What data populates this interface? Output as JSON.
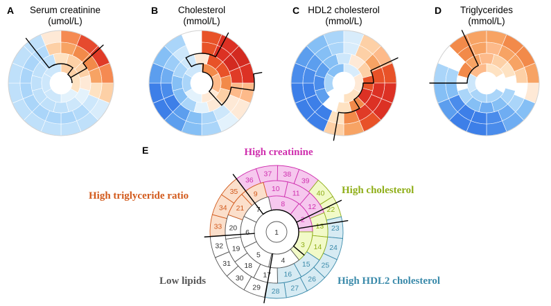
{
  "panels": [
    {
      "letter": "A",
      "title": [
        "Serum creatinine",
        "(umol/L)"
      ],
      "rings": [
        [
          "#fee9d6",
          "#f58a52",
          "#e64a2e",
          "#e03b27",
          "#f58a52",
          "#fdd0a6",
          "#d8ecfb",
          "#bfe0fa",
          "#bfe0fa",
          "#bfe0fa",
          "#bfe0fa",
          "#bfe0fa",
          "#bfe0fa",
          "#bfe0fa",
          "#bfe0fa",
          "#bfe0fa"
        ],
        [
          "#fdd0a6",
          "#f7a364",
          "#f28a4a",
          "#f28a4a",
          "#f7a364",
          "#fee2c2",
          "#cde7fb",
          "#b3dafa",
          "#aad5f9",
          "#aad5f9",
          "#aad5f9",
          "#aad5f9",
          "#aad5f9",
          "#aad5f9",
          "#aad5f9",
          "#b3dafa"
        ],
        [
          "#fee2c2",
          "#fdd0a6",
          "#fdd0a6",
          "#fee9d6",
          "#e3f2fc",
          "#cde7fb",
          "#bfe0fa",
          "#bfe0fa",
          "#bfe0fa",
          "#bfe0fa",
          "#bfe0fa",
          "#bfe0fa"
        ],
        [
          "#fdd0a6",
          "#fee2c2",
          "#e3f2fc",
          "#cde7fb",
          "#cde7fb",
          "#cde7fb"
        ]
      ]
    },
    {
      "letter": "B",
      "title": [
        "Cholesterol",
        "(mmol/L)"
      ],
      "rings": [
        [
          "#ffffff",
          "#e85228",
          "#dc3124",
          "#d32a20",
          "#dc3124",
          "#fdba8a",
          "#fee9d6",
          "#e3f2fc",
          "#aad5f9",
          "#85bff5",
          "#5c9eee",
          "#3d7fe8",
          "#3d7fe8",
          "#5c9eee",
          "#85bff5",
          "#aad5f9"
        ],
        [
          "#ffffff",
          "#e85228",
          "#dc3124",
          "#d32a20",
          "#e03b27",
          "#fdba8a",
          "#fee9d6",
          "#cde7fb",
          "#aad5f9",
          "#85bff5",
          "#5c9eee",
          "#3d7fe8",
          "#4a8ceb",
          "#6fadf2",
          "#9ccdf8",
          "#cde7fb"
        ],
        [
          "#fee9d6",
          "#e85228",
          "#e85228",
          "#f28a4a",
          "#fdd0a6",
          "#fee9d6",
          "#e3f2fc",
          "#aad5f9",
          "#85bff5",
          "#85bff5",
          "#aad5f9",
          "#cde7fb"
        ],
        [
          "#f28a4a",
          "#fdba8a",
          "#fee9d6",
          "#e3f2fc",
          "#aad5f9",
          "#cde7fb"
        ]
      ]
    },
    {
      "letter": "C",
      "title": [
        "HDL2 cholesterol",
        "(mmol/L)"
      ],
      "rings": [
        [
          "#aad5f9",
          "#d8ecfb",
          "#fdd0a6",
          "#fdba8a",
          "#e85228",
          "#dc3124",
          "#dc3124",
          "#e85228",
          "#f7a364",
          "#fdd0a6",
          "#3d7fe8",
          "#3d7fe8",
          "#3d7fe8",
          "#4a8ceb",
          "#5c9eee",
          "#85bff5"
        ],
        [
          "#aad5f9",
          "#d8ecfb",
          "#fdd0a6",
          "#f7a364",
          "#e85228",
          "#dc3124",
          "#dc3124",
          "#e03b27",
          "#f28a4a",
          "#fee2c2",
          "#3d7fe8",
          "#3d7fe8",
          "#3d7fe8",
          "#4a8ceb",
          "#5c9eee",
          "#85bff5"
        ],
        [
          "#cde7fb",
          "#fee9d6",
          "#fdd0a6",
          "#e85228",
          "#dc3124",
          "#f28a4a",
          "#fee2c2",
          "#ffffff",
          "#5c9eee",
          "#4a8ceb",
          "#5c9eee",
          "#85bff5"
        ],
        [
          "#d8ecfb",
          "#fee9d6",
          "#fee2c2",
          "#ffffff",
          "#aad5f9",
          "#85bff5"
        ]
      ]
    },
    {
      "letter": "D",
      "title": [
        "Triglycerides",
        "(mmol/L)"
      ],
      "rings": [
        [
          "#f7a364",
          "#f7a364",
          "#f28a4a",
          "#f28a4a",
          "#f7a364",
          "#fee9d6",
          "#85bff5",
          "#6fadf2",
          "#4a8ceb",
          "#3d7fe8",
          "#3d7fe8",
          "#5c9eee",
          "#85bff5",
          "#aad5f9",
          "#ffffff",
          "#f28a4a"
        ],
        [
          "#f7a364",
          "#fdba8a",
          "#f7a364",
          "#f7a364",
          "#fdd0a6",
          "#ffffff",
          "#aad5f9",
          "#6fadf2",
          "#4a8ceb",
          "#3d7fe8",
          "#3d7fe8",
          "#4a8ceb",
          "#85bff5",
          "#aad5f9",
          "#ffffff",
          "#f28a4a"
        ],
        [
          "#fdba8a",
          "#fdd0a6",
          "#fee2c2",
          "#ffffff",
          "#aad5f9",
          "#85bff5",
          "#6fadf2",
          "#85bff5",
          "#aad5f9",
          "#ffffff",
          "#f28a4a",
          "#f7a364"
        ],
        [
          "#fee2c2",
          "#ffffff",
          "#aad5f9",
          "#aad5f9",
          "#cde7fb",
          "#fdba8a"
        ]
      ]
    }
  ],
  "panelE": {
    "letter": "E",
    "groups": [
      {
        "key": "crea",
        "name": "High creatinine",
        "color": "#cf2fae",
        "fill": "#f6c8ee",
        "num": "#cf2fae"
      },
      {
        "key": "chol",
        "name": "High cholesterol",
        "color": "#8fae18",
        "fill": "#f2fac8",
        "num": "#8fae18"
      },
      {
        "key": "hdl",
        "name": "High HDL2 cholesterol",
        "color": "#3a8aaa",
        "fill": "#d7ebf3",
        "num": "#3a8aaa"
      },
      {
        "key": "low",
        "name": "Low lipids",
        "color": "#555555",
        "fill": "#ffffff",
        "num": "#333333"
      },
      {
        "key": "trig",
        "name": "High triglyceride ratio",
        "color": "#d25a1c",
        "fill": "#fbdfcb",
        "num": "#d25a1c"
      }
    ],
    "rings": [
      {
        "labels": [
          "37",
          "38",
          "39",
          "40",
          "22",
          "23",
          "24",
          "25",
          "26",
          "27",
          "28",
          "29",
          "30",
          "31",
          "32",
          "33",
          "34",
          "35",
          "36"
        ],
        "groups": [
          "crea",
          "crea",
          "crea",
          "chol",
          "chol",
          "hdl",
          "hdl",
          "hdl",
          "hdl",
          "hdl",
          "hdl",
          "low",
          "low",
          "low",
          "low",
          "trig",
          "trig",
          "trig",
          "crea"
        ]
      },
      {
        "labels": [
          "10",
          "11",
          "12",
          "13",
          "14",
          "15",
          "16",
          "17",
          "18",
          "19",
          "20",
          "21",
          "9"
        ],
        "groups": [
          "crea",
          "crea",
          "crea",
          "chol",
          "chol",
          "hdl",
          "hdl",
          "low",
          "low",
          "low",
          "low",
          "trig",
          "trig"
        ]
      },
      {
        "labels": [
          "8",
          "2",
          "3",
          "4",
          "5",
          "6",
          "7"
        ],
        "groups": [
          "crea",
          "crea",
          "chol",
          "low",
          "low",
          "low",
          "low"
        ]
      },
      {
        "labels": [
          "1"
        ],
        "groups": [
          "low"
        ]
      }
    ]
  }
}
